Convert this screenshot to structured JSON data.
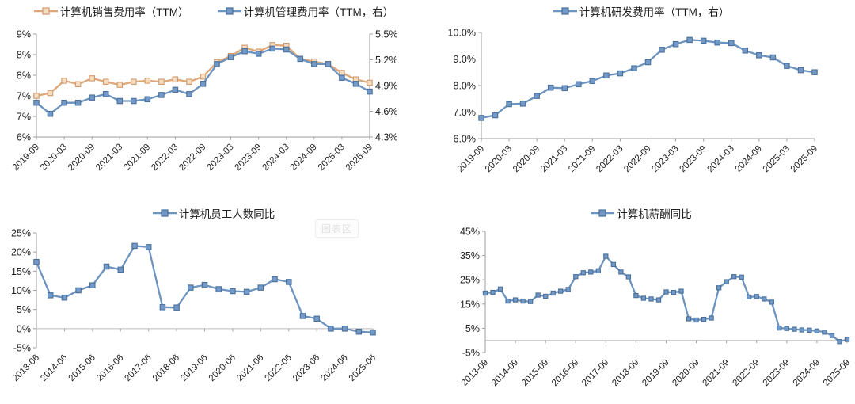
{
  "misc": {
    "ghost_label": "图表区"
  },
  "colors": {
    "orange_line": "#DCA87A",
    "orange_marker_fill": "#F5DDC2",
    "orange_marker_edge": "#D29A6E",
    "blue_line": "#6D93BF",
    "blue_marker_fill": "#7299C8",
    "blue_marker_edge": "#49709B",
    "axis_line": "#9E9E9E",
    "zero_line": "#BDBDBD",
    "tick_text": "#1f1f1f"
  },
  "chart_data": [
    {
      "id": "expense-ratios",
      "type": "line",
      "grid": false,
      "legend_position": "top",
      "legend": [
        {
          "label": "计算机销售费用率（TTM）",
          "color": "orange"
        },
        {
          "label": "计算机管理费用率（TTM，右）",
          "color": "blue"
        }
      ],
      "x": [
        "2019-09",
        "2019-12",
        "2020-03",
        "2020-06",
        "2020-09",
        "2020-12",
        "2021-03",
        "2021-06",
        "2021-09",
        "2021-12",
        "2022-03",
        "2022-06",
        "2022-09",
        "2022-12",
        "2023-03",
        "2023-06",
        "2023-09",
        "2023-12",
        "2024-03",
        "2024-06",
        "2024-09",
        "2024-12",
        "2025-03",
        "2025-06",
        "2025-09"
      ],
      "x_label_every": 2,
      "y_axis_left": {
        "tick_labels": [
          "9%",
          "8%",
          "8%",
          "7%",
          "7%",
          "6%"
        ],
        "min": 6,
        "max": 9
      },
      "y_axis_right": {
        "tick_labels": [
          "5.5%",
          "5.2%",
          "4.9%",
          "4.6%",
          "4.3%"
        ],
        "min": 4.3,
        "max": 5.5
      },
      "series": [
        {
          "name": "计算机销售费用率（TTM）",
          "color": "orange",
          "axis": "left",
          "values": [
            7.2,
            7.28,
            7.64,
            7.54,
            7.71,
            7.61,
            7.52,
            7.61,
            7.64,
            7.61,
            7.68,
            7.61,
            7.76,
            8.18,
            8.36,
            8.6,
            8.49,
            8.68,
            8.66,
            8.28,
            8.2,
            8.13,
            7.87,
            7.68,
            7.58
          ]
        },
        {
          "name": "计算机管理费用率（TTM，右）",
          "color": "blue",
          "axis": "right",
          "values": [
            4.7,
            4.57,
            4.7,
            4.7,
            4.76,
            4.8,
            4.72,
            4.72,
            4.74,
            4.79,
            4.85,
            4.8,
            4.92,
            5.15,
            5.23,
            5.3,
            5.27,
            5.33,
            5.32,
            5.21,
            5.15,
            5.15,
            4.99,
            4.92,
            4.83
          ]
        }
      ]
    },
    {
      "id": "rnd-ratio",
      "type": "line",
      "grid": false,
      "legend_position": "top",
      "legend": [
        {
          "label": "计算机研发费用率（TTM，右）",
          "color": "blue"
        }
      ],
      "x": [
        "2019-09",
        "2019-12",
        "2020-03",
        "2020-06",
        "2020-09",
        "2020-12",
        "2021-03",
        "2021-06",
        "2021-09",
        "2021-12",
        "2022-03",
        "2022-06",
        "2022-09",
        "2022-12",
        "2023-03",
        "2023-06",
        "2023-09",
        "2023-12",
        "2024-03",
        "2024-06",
        "2024-09",
        "2024-12",
        "2025-03",
        "2025-06",
        "2025-09"
      ],
      "x_label_every": 2,
      "y_axis_left": {
        "tick_labels": [
          "10.0%",
          "9.0%",
          "8.0%",
          "7.0%",
          "6.0%"
        ],
        "min": 6,
        "max": 10
      },
      "series": [
        {
          "name": "计算机研发费用率（TTM，右）",
          "color": "blue",
          "axis": "left",
          "values": [
            6.78,
            6.88,
            7.3,
            7.32,
            7.61,
            7.92,
            7.9,
            8.05,
            8.17,
            8.38,
            8.46,
            8.65,
            8.88,
            9.35,
            9.56,
            9.72,
            9.69,
            9.62,
            9.6,
            9.32,
            9.14,
            9.06,
            8.74,
            8.58,
            8.5
          ]
        }
      ]
    },
    {
      "id": "headcount-yoy",
      "type": "line",
      "grid": false,
      "legend_position": "top",
      "legend": [
        {
          "label": "计算机员工人数同比",
          "color": "blue"
        }
      ],
      "x": [
        "2013-06",
        "2013-12",
        "2014-06",
        "2014-12",
        "2015-06",
        "2015-12",
        "2016-06",
        "2016-12",
        "2017-06",
        "2017-12",
        "2018-06",
        "2018-12",
        "2019-06",
        "2019-12",
        "2020-06",
        "2020-12",
        "2021-06",
        "2021-12",
        "2022-06",
        "2022-12",
        "2023-06",
        "2023-12",
        "2024-06",
        "2024-12",
        "2025-06"
      ],
      "x_label_every": 2,
      "y_axis_left": {
        "tick_labels": [
          "25%",
          "20%",
          "15%",
          "10%",
          "5%",
          "0%",
          "-5%"
        ],
        "min": -5,
        "max": 25
      },
      "series": [
        {
          "name": "计算机员工人数同比",
          "color": "blue",
          "axis": "left",
          "values": [
            17.4,
            8.7,
            8.1,
            10.0,
            11.3,
            16.2,
            15.4,
            21.6,
            21.3,
            5.6,
            5.5,
            10.7,
            11.4,
            10.3,
            9.8,
            9.6,
            10.7,
            12.9,
            12.2,
            3.3,
            2.6,
            0.0,
            0.0,
            -0.8,
            -1.0
          ]
        }
      ]
    },
    {
      "id": "salary-yoy",
      "type": "line",
      "grid": false,
      "legend_position": "top",
      "legend": [
        {
          "label": "计算机薪酬同比",
          "color": "blue"
        }
      ],
      "x": [
        "2013-09",
        "2013-12",
        "2014-03",
        "2014-06",
        "2014-09",
        "2014-12",
        "2015-03",
        "2015-06",
        "2015-09",
        "2015-12",
        "2016-03",
        "2016-06",
        "2016-09",
        "2016-12",
        "2017-03",
        "2017-06",
        "2017-09",
        "2017-12",
        "2018-03",
        "2018-06",
        "2018-09",
        "2018-12",
        "2019-03",
        "2019-06",
        "2019-09",
        "2019-12",
        "2020-03",
        "2020-06",
        "2020-09",
        "2020-12",
        "2021-03",
        "2021-06",
        "2021-09",
        "2021-12",
        "2022-03",
        "2022-06",
        "2022-09",
        "2022-12",
        "2023-03",
        "2023-06",
        "2023-09",
        "2023-12",
        "2024-03",
        "2024-06",
        "2024-09",
        "2024-12",
        "2025-03",
        "2025-06",
        "2025-09"
      ],
      "x_label_every": 4,
      "y_axis_left": {
        "tick_labels": [
          "45%",
          "35%",
          "25%",
          "15%",
          "5%",
          "-5%"
        ],
        "min": -5,
        "max": 45
      },
      "series": [
        {
          "name": "计算机薪酬同比",
          "color": "blue",
          "axis": "left",
          "values": [
            19.5,
            19.8,
            21.2,
            16.2,
            16.7,
            16.2,
            16.0,
            18.7,
            18.2,
            19.5,
            20.3,
            21.0,
            26.3,
            27.9,
            28.2,
            28.7,
            34.7,
            31.3,
            28.2,
            26.2,
            18.5,
            17.4,
            17.1,
            16.7,
            20.0,
            19.8,
            20.3,
            8.9,
            8.4,
            8.7,
            9.2,
            21.7,
            24.2,
            26.3,
            26.1,
            17.9,
            18.1,
            17.1,
            15.8,
            5.1,
            4.9,
            4.6,
            4.3,
            4.2,
            3.9,
            3.4,
            2.0,
            -0.5,
            0.4
          ]
        }
      ]
    }
  ]
}
